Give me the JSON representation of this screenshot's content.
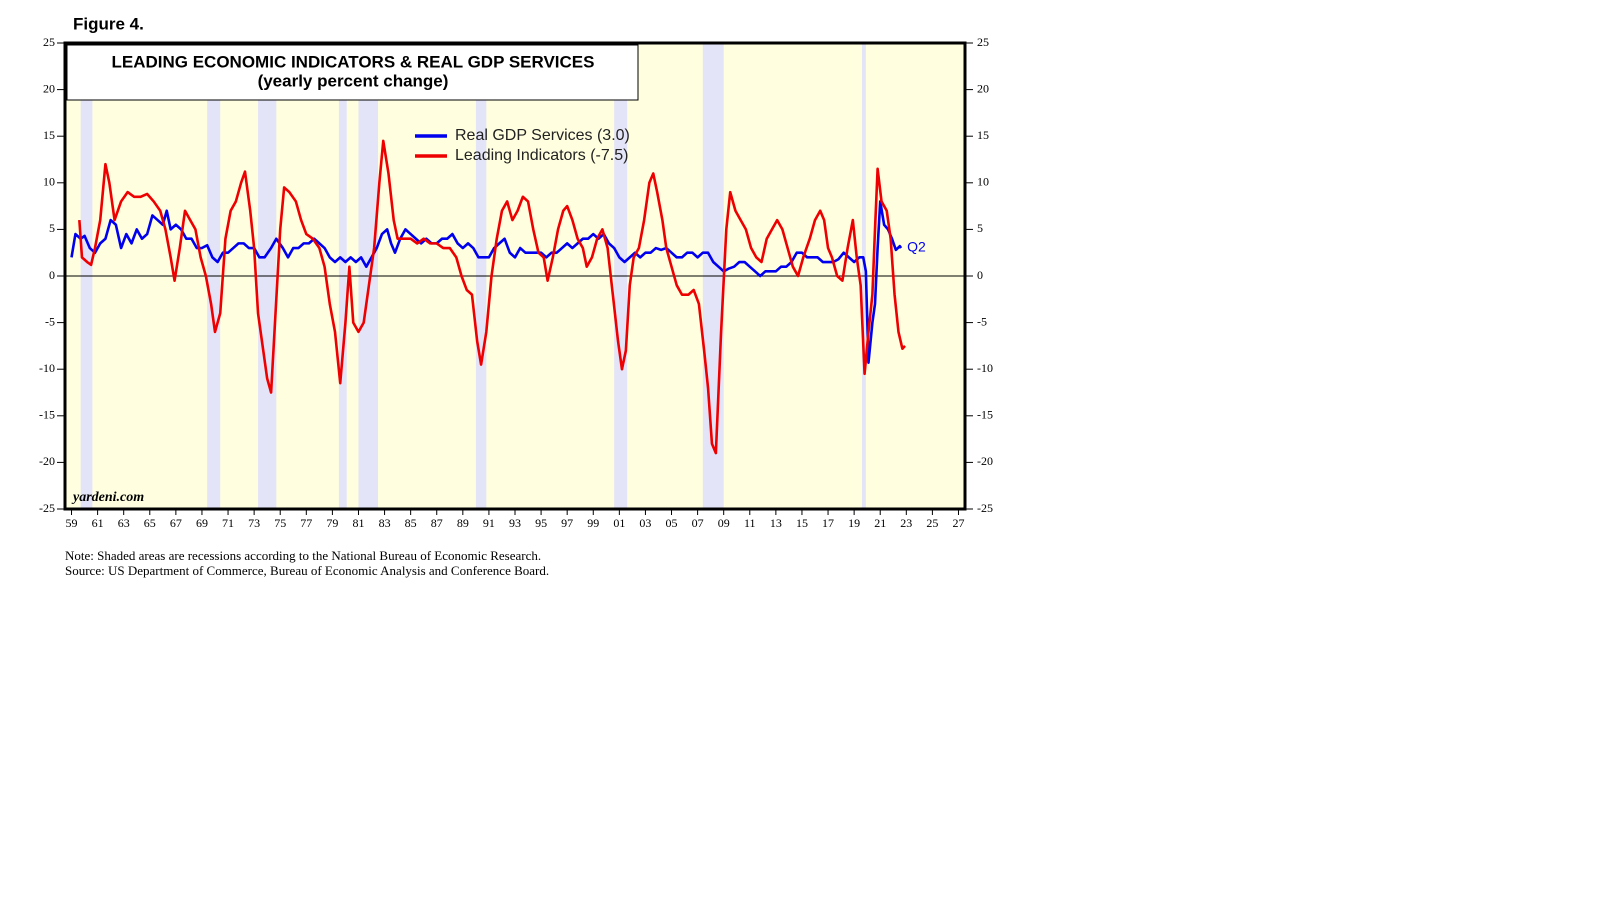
{
  "chart_data": {
    "type": "line",
    "figure_label": "Figure 4.",
    "title": "LEADING ECONOMIC INDICATORS & REAL GDP SERVICES",
    "subtitle": "(yearly percent change)",
    "watermark": "yardeni.com",
    "annotation": "Q2",
    "notes": [
      "Note: Shaded areas are recessions according to the National Bureau of Economic Research.",
      "Source: US Department of Commerce, Bureau of Economic Analysis and Conference Board."
    ],
    "xlim": [
      1958.5,
      2027.5
    ],
    "ylim": [
      -25,
      25
    ],
    "yticks": [
      -25,
      -20,
      -15,
      -10,
      -5,
      0,
      5,
      10,
      15,
      20,
      25
    ],
    "xticks": [
      {
        "value": 1959,
        "label": "59"
      },
      {
        "value": 1961,
        "label": "61"
      },
      {
        "value": 1963,
        "label": "63"
      },
      {
        "value": 1965,
        "label": "65"
      },
      {
        "value": 1967,
        "label": "67"
      },
      {
        "value": 1969,
        "label": "69"
      },
      {
        "value": 1971,
        "label": "71"
      },
      {
        "value": 1973,
        "label": "73"
      },
      {
        "value": 1975,
        "label": "75"
      },
      {
        "value": 1977,
        "label": "77"
      },
      {
        "value": 1979,
        "label": "79"
      },
      {
        "value": 1981,
        "label": "81"
      },
      {
        "value": 1983,
        "label": "83"
      },
      {
        "value": 1985,
        "label": "85"
      },
      {
        "value": 1987,
        "label": "87"
      },
      {
        "value": 1989,
        "label": "89"
      },
      {
        "value": 1991,
        "label": "91"
      },
      {
        "value": 1993,
        "label": "93"
      },
      {
        "value": 1995,
        "label": "95"
      },
      {
        "value": 1997,
        "label": "97"
      },
      {
        "value": 1999,
        "label": "99"
      },
      {
        "value": 2001,
        "label": "01"
      },
      {
        "value": 2003,
        "label": "03"
      },
      {
        "value": 2005,
        "label": "05"
      },
      {
        "value": 2007,
        "label": "07"
      },
      {
        "value": 2009,
        "label": "09"
      },
      {
        "value": 2011,
        "label": "11"
      },
      {
        "value": 2013,
        "label": "13"
      },
      {
        "value": 2015,
        "label": "15"
      },
      {
        "value": 2017,
        "label": "17"
      },
      {
        "value": 2019,
        "label": "19"
      },
      {
        "value": 2021,
        "label": "21"
      },
      {
        "value": 2023,
        "label": "23"
      },
      {
        "value": 2025,
        "label": "25"
      },
      {
        "value": 2027,
        "label": "27"
      }
    ],
    "recessions": [
      [
        1959.7,
        1960.6
      ],
      [
        1969.4,
        1970.4
      ],
      [
        1973.3,
        1974.7
      ],
      [
        1979.5,
        1980.1
      ],
      [
        1981.0,
        1982.5
      ],
      [
        1990.0,
        1990.8
      ],
      [
        2000.6,
        2001.6
      ],
      [
        2007.4,
        2009.0
      ],
      [
        2019.6,
        2019.9
      ]
    ],
    "series": [
      {
        "name": "Real GDP Services (3.0)",
        "color": "#0000ee",
        "x": [
          1959.0,
          1959.3,
          1959.7,
          1960.0,
          1960.4,
          1960.8,
          1961.2,
          1961.6,
          1962.0,
          1962.4,
          1962.8,
          1963.2,
          1963.6,
          1964.0,
          1964.4,
          1964.8,
          1965.2,
          1965.6,
          1966.0,
          1966.3,
          1966.6,
          1967.0,
          1967.4,
          1967.8,
          1968.2,
          1968.6,
          1969.0,
          1969.4,
          1969.8,
          1970.2,
          1970.6,
          1971.0,
          1971.4,
          1971.8,
          1972.2,
          1972.6,
          1973.0,
          1973.4,
          1973.8,
          1974.3,
          1974.7,
          1975.2,
          1975.6,
          1976.0,
          1976.4,
          1976.8,
          1977.2,
          1977.6,
          1978.0,
          1978.4,
          1978.8,
          1979.2,
          1979.6,
          1980.0,
          1980.4,
          1980.8,
          1981.2,
          1981.6,
          1982.0,
          1982.4,
          1982.8,
          1983.2,
          1983.5,
          1983.8,
          1984.2,
          1984.6,
          1985.0,
          1985.4,
          1985.8,
          1986.2,
          1986.6,
          1987.0,
          1987.4,
          1987.8,
          1988.2,
          1988.6,
          1989.0,
          1989.4,
          1989.8,
          1990.2,
          1990.6,
          1991.0,
          1991.4,
          1991.8,
          1992.2,
          1992.6,
          1993.0,
          1993.4,
          1993.8,
          1994.2,
          1994.6,
          1995.0,
          1995.4,
          1995.8,
          1996.2,
          1996.6,
          1997.0,
          1997.4,
          1997.8,
          1998.2,
          1998.6,
          1999.0,
          1999.4,
          1999.8,
          2000.2,
          2000.6,
          2001.0,
          2001.4,
          2001.8,
          2002.2,
          2002.6,
          2003.0,
          2003.4,
          2003.8,
          2004.2,
          2004.6,
          2005.0,
          2005.4,
          2005.8,
          2006.2,
          2006.6,
          2007.0,
          2007.4,
          2007.8,
          2008.2,
          2008.6,
          2009.0,
          2009.4,
          2009.8,
          2010.2,
          2010.6,
          2011.0,
          2011.4,
          2011.8,
          2012.2,
          2012.6,
          2013.0,
          2013.4,
          2013.8,
          2014.2,
          2014.6,
          2015.0,
          2015.4,
          2015.8,
          2016.2,
          2016.6,
          2017.0,
          2017.4,
          2017.8,
          2018.2,
          2018.6,
          2019.0,
          2019.4,
          2019.7,
          2019.9,
          2020.1,
          2020.4,
          2020.6,
          2020.8,
          2021.0,
          2021.3,
          2021.6,
          2021.9,
          2022.2,
          2022.5,
          2022.6
        ],
        "values": [
          2,
          4.5,
          4,
          4.3,
          3,
          2.5,
          3.5,
          4,
          6,
          5.5,
          3,
          4.5,
          3.5,
          5,
          4,
          4.5,
          6.5,
          6,
          5.5,
          7,
          5,
          5.5,
          5,
          4,
          4,
          3,
          3,
          3.3,
          2,
          1.5,
          2.5,
          2.5,
          3,
          3.5,
          3.5,
          3,
          3,
          2,
          2,
          3,
          4,
          3,
          2,
          3,
          3,
          3.5,
          3.5,
          4,
          3.5,
          3,
          2,
          1.5,
          2,
          1.5,
          2,
          1.5,
          2,
          1,
          2,
          3,
          4.5,
          5,
          3.5,
          2.5,
          4,
          5,
          4.5,
          4,
          3.5,
          4,
          3.5,
          3.5,
          4,
          4,
          4.5,
          3.5,
          3,
          3.5,
          3,
          2,
          2,
          2,
          3,
          3.5,
          4,
          2.5,
          2,
          3,
          2.5,
          2.5,
          2.5,
          2.5,
          2,
          2.5,
          2.5,
          3,
          3.5,
          3,
          3.5,
          4,
          4,
          4.5,
          4,
          4.5,
          3.5,
          3,
          2,
          1.5,
          2,
          2.5,
          2,
          2.5,
          2.5,
          3,
          2.8,
          3,
          2.5,
          2,
          2,
          2.5,
          2.5,
          2,
          2.5,
          2.5,
          1.5,
          1,
          0.5,
          0.8,
          1,
          1.5,
          1.5,
          1,
          0.5,
          0,
          0.5,
          0.5,
          0.5,
          1,
          1,
          1.5,
          2.5,
          2.5,
          2,
          2,
          2,
          1.5,
          1.5,
          1.5,
          1.8,
          2.5,
          2,
          1.5,
          2,
          2,
          0.5,
          -9.3,
          -5,
          -3,
          3,
          8,
          5.5,
          5,
          4,
          2.8,
          3.2,
          3.0
        ]
      },
      {
        "name": "Leading Indicators (-7.5)",
        "color": "#ee0000",
        "x": [
          1959.6,
          1959.8,
          1960.2,
          1960.5,
          1960.8,
          1961.2,
          1961.6,
          1961.9,
          1962.3,
          1962.8,
          1963.3,
          1963.8,
          1964.3,
          1964.8,
          1965.3,
          1965.8,
          1966.2,
          1966.6,
          1966.9,
          1967.3,
          1967.7,
          1968.1,
          1968.5,
          1968.9,
          1969.3,
          1969.7,
          1970.0,
          1970.4,
          1970.8,
          1971.2,
          1971.6,
          1972.0,
          1972.3,
          1972.7,
          1973.0,
          1973.3,
          1973.7,
          1974.0,
          1974.3,
          1974.6,
          1975.0,
          1975.3,
          1975.7,
          1976.2,
          1976.6,
          1977.0,
          1977.5,
          1978.0,
          1978.4,
          1978.8,
          1979.2,
          1979.6,
          1980.0,
          1980.3,
          1980.6,
          1981.0,
          1981.4,
          1981.8,
          1982.2,
          1982.6,
          1982.9,
          1983.3,
          1983.7,
          1984.0,
          1984.5,
          1985.0,
          1985.5,
          1986.0,
          1986.5,
          1987.0,
          1987.5,
          1988.0,
          1988.5,
          1988.9,
          1989.3,
          1989.7,
          1990.1,
          1990.4,
          1990.8,
          1991.2,
          1991.6,
          1992.0,
          1992.4,
          1992.8,
          1993.2,
          1993.6,
          1994.0,
          1994.4,
          1994.8,
          1995.2,
          1995.5,
          1995.9,
          1996.3,
          1996.7,
          1997.0,
          1997.4,
          1997.8,
          1998.2,
          1998.5,
          1998.9,
          1999.3,
          1999.7,
          2000.1,
          2000.5,
          2000.9,
          2001.2,
          2001.5,
          2001.8,
          2002.1,
          2002.5,
          2002.9,
          2003.3,
          2003.6,
          2003.9,
          2004.3,
          2004.6,
          2005.0,
          2005.4,
          2005.8,
          2006.3,
          2006.7,
          2007.1,
          2007.5,
          2007.8,
          2008.1,
          2008.4,
          2008.8,
          2009.2,
          2009.5,
          2009.9,
          2010.3,
          2010.7,
          2011.1,
          2011.5,
          2011.9,
          2012.3,
          2012.7,
          2013.1,
          2013.5,
          2013.9,
          2014.3,
          2014.7,
          2015.1,
          2015.6,
          2016.0,
          2016.4,
          2016.7,
          2017.0,
          2017.3,
          2017.7,
          2018.1,
          2018.5,
          2018.9,
          2019.2,
          2019.5,
          2019.8,
          2020.1,
          2020.4,
          2020.6,
          2020.8,
          2021.1,
          2021.5,
          2021.8,
          2022.1,
          2022.4,
          2022.7,
          2022.9
        ],
        "values": [
          6,
          2,
          1.5,
          1.2,
          3,
          6,
          12,
          10,
          6,
          8,
          9,
          8.5,
          8.5,
          8.8,
          8,
          7,
          5,
          2,
          -0.5,
          3,
          7,
          6,
          5,
          2,
          0,
          -3,
          -6,
          -4,
          4,
          7,
          8,
          10,
          11.2,
          7,
          3,
          -4,
          -8,
          -11,
          -12.5,
          -5,
          5,
          9.5,
          9,
          8,
          6,
          4.5,
          4,
          3,
          1,
          -3,
          -6,
          -11.5,
          -5,
          1,
          -5,
          -6,
          -5,
          -1,
          3,
          10,
          14.5,
          11,
          6,
          4,
          4,
          4,
          3.5,
          4,
          3.5,
          3.5,
          3,
          3,
          2,
          0,
          -1.5,
          -2,
          -7,
          -9.5,
          -6,
          0,
          4,
          7,
          8,
          6,
          7,
          8.5,
          8,
          5,
          2.5,
          2,
          -0.5,
          2,
          5,
          7,
          7.5,
          6,
          4,
          3,
          1,
          2,
          4,
          5,
          3,
          -2,
          -7,
          -10,
          -8,
          -1,
          2,
          3,
          6,
          10,
          11,
          9,
          6,
          3,
          1,
          -1,
          -2,
          -2,
          -1.5,
          -3,
          -8,
          -12,
          -18,
          -19,
          -6,
          5,
          9,
          7,
          6,
          5,
          3,
          2,
          1.5,
          4,
          5,
          6,
          5,
          3,
          1,
          0,
          2,
          4,
          6,
          7,
          6,
          3,
          2,
          0,
          -0.5,
          3,
          6,
          2,
          -1,
          -10.5,
          -6,
          -2,
          5,
          11.5,
          8,
          7,
          4,
          -2,
          -6,
          -7.8,
          -7.5
        ]
      }
    ]
  }
}
